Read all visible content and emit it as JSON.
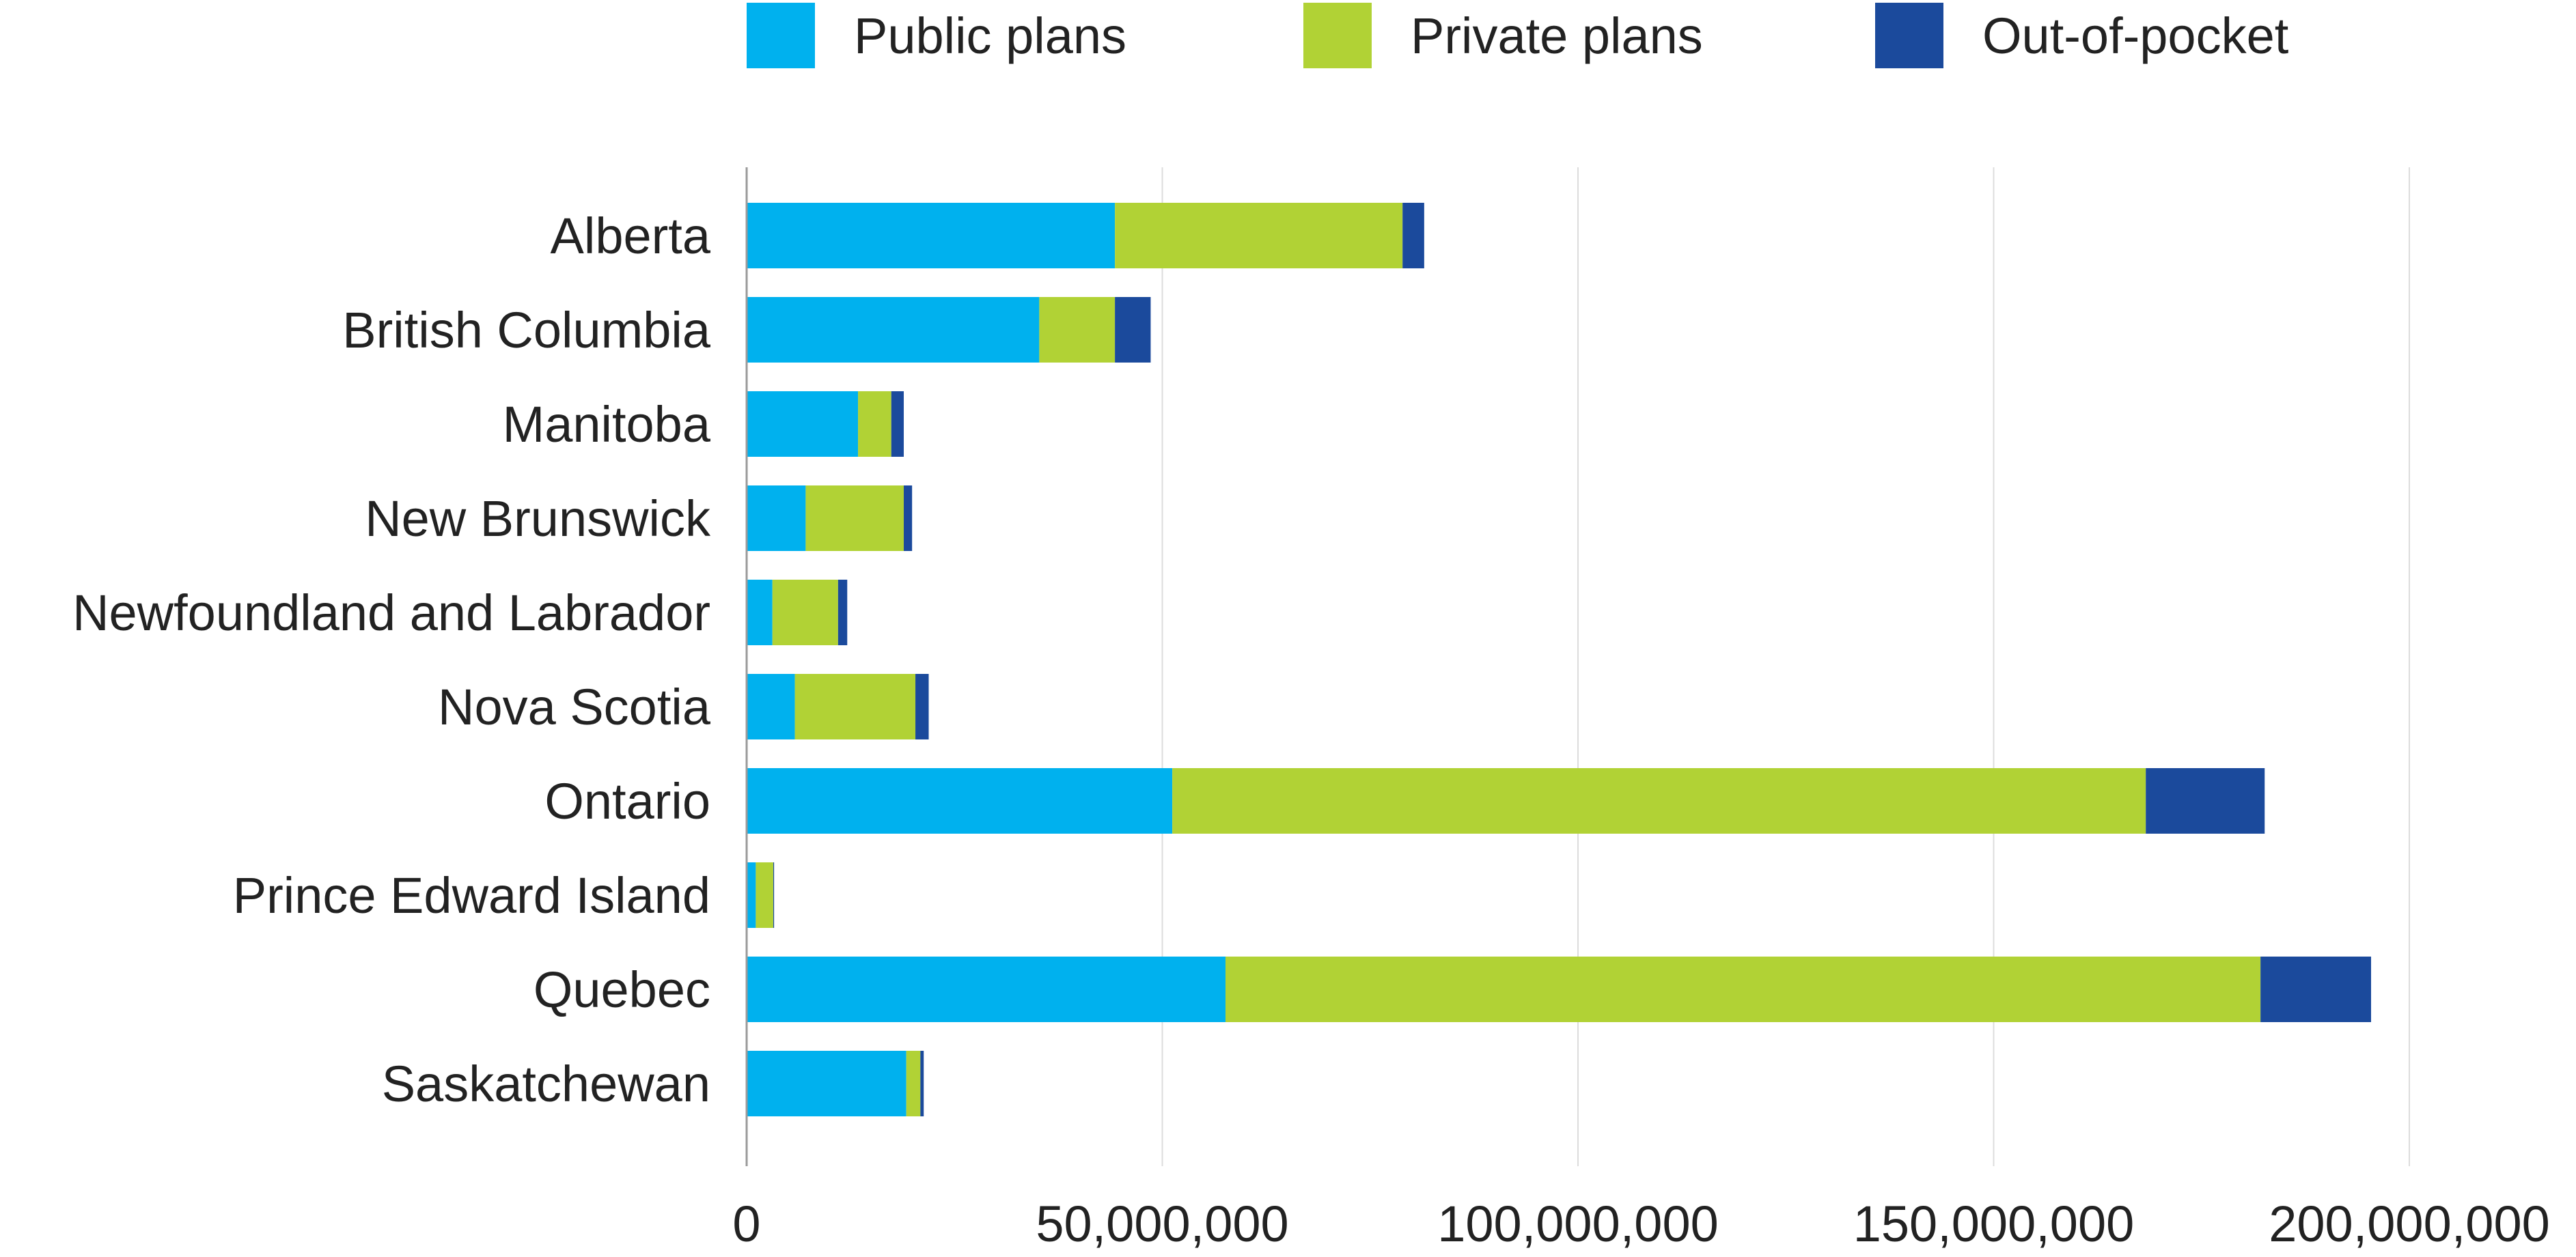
{
  "chart_data": {
    "type": "bar",
    "orientation": "horizontal",
    "stacked": true,
    "title": "",
    "xlabel": "",
    "ylabel": "",
    "xlim": [
      0,
      200000000
    ],
    "xticks": [
      0,
      50000000,
      100000000,
      150000000,
      200000000
    ],
    "xtick_labels": [
      "0",
      "50,000,000",
      "100,000,000",
      "150,000,000",
      "200,000,000"
    ],
    "grid": "vertical",
    "legend_position": "top",
    "categories": [
      "Alberta",
      "British Columbia",
      "Manitoba",
      "New Brunswick",
      "Newfoundland and Labrador",
      "Nova Scotia",
      "Ontario",
      "Prince Edward Island",
      "Quebec",
      "Saskatchewan"
    ],
    "series": [
      {
        "name": "Public plans",
        "color": "#00b1ee",
        "values": [
          44300000,
          35200000,
          13400000,
          7100000,
          3100000,
          5800000,
          51200000,
          1100000,
          57600000,
          19200000
        ]
      },
      {
        "name": "Private plans",
        "color": "#b1d235",
        "values": [
          34600000,
          9100000,
          4000000,
          11800000,
          7900000,
          14500000,
          117100000,
          2100000,
          124500000,
          1700000
        ]
      },
      {
        "name": "Out-of-pocket",
        "color": "#1b4a9c",
        "values": [
          2600000,
          4300000,
          1500000,
          1000000,
          1100000,
          1600000,
          14300000,
          100000,
          13300000,
          400000
        ]
      }
    ]
  }
}
